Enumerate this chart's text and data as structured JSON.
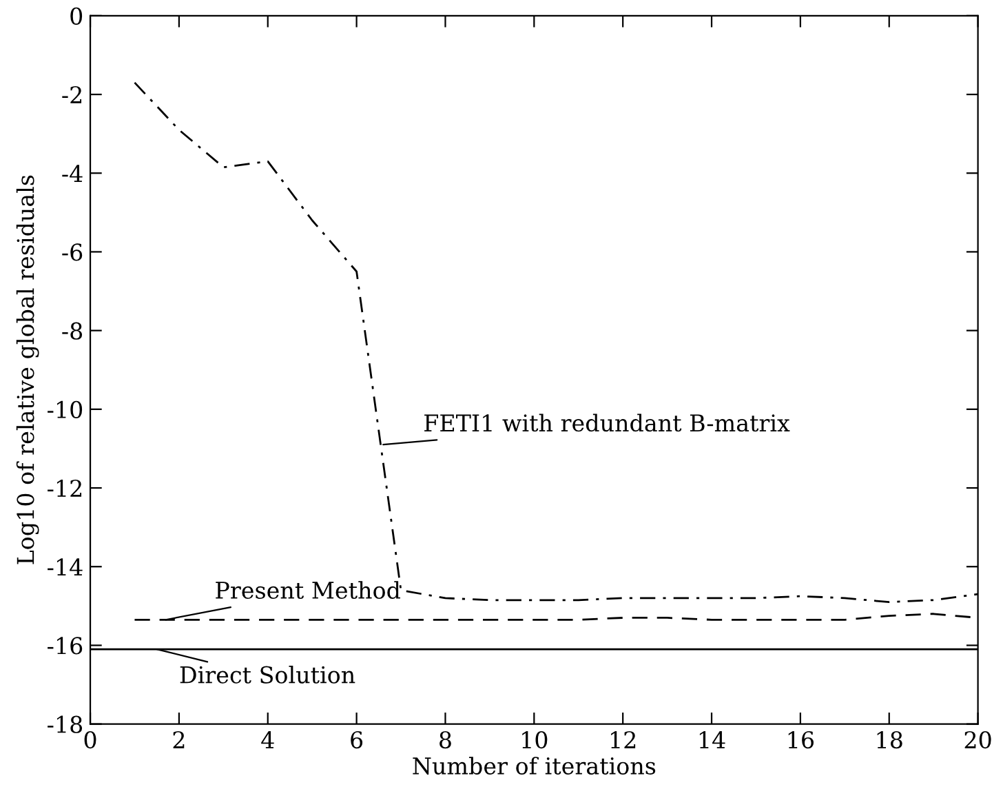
{
  "chart_data": {
    "type": "line",
    "xlabel": "Number of iterations",
    "ylabel": "Log10 of relative global residuals",
    "xlim": [
      0,
      20
    ],
    "xticks": [
      0,
      2,
      4,
      6,
      8,
      10,
      12,
      14,
      16,
      18,
      20
    ],
    "ylim": [
      -18,
      0
    ],
    "yticks": [
      -18,
      -16,
      -14,
      -12,
      -10,
      -8,
      -6,
      -4,
      -2,
      0
    ],
    "grid": false,
    "legend": false,
    "series": [
      {
        "color": "#000000",
        "line_style": "dashdot",
        "x": [
          1,
          2,
          3,
          4,
          5,
          6,
          7,
          8,
          9,
          10,
          11,
          12,
          13,
          14,
          15,
          16,
          17,
          18,
          19,
          20
        ],
        "values": [
          -1.7,
          -2.9,
          -3.85,
          -3.7,
          -5.2,
          -6.5,
          -14.6,
          -14.8,
          -14.85,
          -14.85,
          -14.85,
          -14.8,
          -14.8,
          -14.8,
          -14.8,
          -14.75,
          -14.8,
          -14.9,
          -14.85,
          -14.7
        ]
      },
      {
        "color": "#000000",
        "line_style": "dashed",
        "x": [
          1,
          2,
          3,
          4,
          5,
          6,
          7,
          8,
          9,
          10,
          11,
          12,
          13,
          14,
          15,
          16,
          17,
          18,
          19,
          20
        ],
        "values": [
          -15.35,
          -15.35,
          -15.35,
          -15.35,
          -15.35,
          -15.35,
          -15.35,
          -15.35,
          -15.35,
          -15.35,
          -15.35,
          -15.3,
          -15.3,
          -15.35,
          -15.35,
          -15.35,
          -15.35,
          -15.25,
          -15.2,
          -15.3
        ]
      },
      {
        "color": "#000000",
        "line_style": "solid",
        "x": [
          0,
          20
        ],
        "values": [
          -16.1,
          -16.1
        ]
      }
    ],
    "annotations": [
      {
        "text": "FETI1 with redundant B-matrix",
        "x": 6.6,
        "y": -10.9
      },
      {
        "text": "Present Method",
        "x": 1.7,
        "y": -15.35
      },
      {
        "text": "Direct Solution",
        "x": 1.5,
        "y": -16.1
      }
    ]
  }
}
